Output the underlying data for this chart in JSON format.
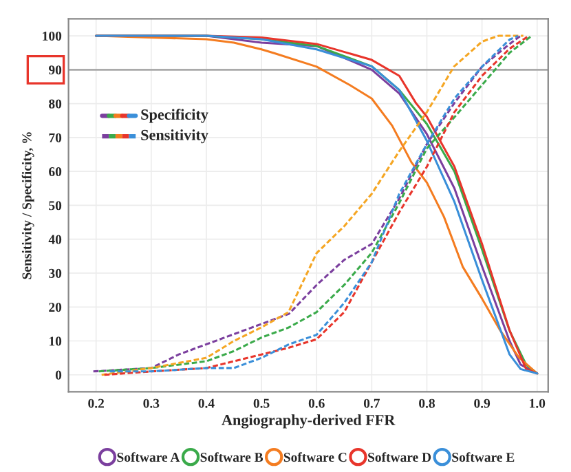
{
  "chart_data": {
    "type": "line",
    "xlabel": "Angiography-derived FFR",
    "ylabel": "Sensitivity / Specificity, %",
    "xlim": [
      0.15,
      1.02
    ],
    "xticks": [
      {
        "value": 0.2,
        "label": "0.2"
      },
      {
        "value": 0.3,
        "label": "0.3"
      },
      {
        "value": 0.4,
        "label": "0.4"
      },
      {
        "value": 0.5,
        "label": "0.5"
      },
      {
        "value": 0.6,
        "label": "0.6"
      },
      {
        "value": 0.7,
        "label": "0.7"
      },
      {
        "value": 0.8,
        "label": "0.8"
      },
      {
        "value": 0.9,
        "label": "0.9"
      },
      {
        "value": 1.0,
        "label": "1.0"
      }
    ],
    "ylim": [
      -5,
      105
    ],
    "yticks": [
      0,
      10,
      20,
      30,
      40,
      50,
      60,
      70,
      80,
      90,
      100
    ],
    "grid": true,
    "legend": "bottom",
    "marker": "none",
    "ref_lines": [
      {
        "axis": "y",
        "value": 90,
        "color": "#aaaaaa"
      }
    ],
    "annotations": [
      "Specificity",
      "Sensitivity"
    ],
    "series": [
      {
        "name": "Software A",
        "color": "#7b3f9e",
        "line_style": "solid",
        "x": [
          0.2,
          0.4,
          0.5,
          0.6,
          0.7,
          0.75,
          0.8,
          0.85,
          0.9,
          0.95,
          0.97,
          1.0
        ],
        "values": [
          100,
          100,
          98,
          97,
          90,
          83,
          71,
          55,
          32,
          10,
          3,
          0.4
        ]
      },
      {
        "name": "Software B",
        "color": "#3aaa4a",
        "line_style": "solid",
        "x": [
          0.2,
          0.4,
          0.5,
          0.6,
          0.7,
          0.75,
          0.8,
          0.85,
          0.9,
          0.95,
          0.98,
          1.0
        ],
        "values": [
          100,
          100,
          99,
          97,
          91,
          84,
          74,
          60,
          37,
          13,
          3,
          0.4
        ]
      },
      {
        "name": "Software C",
        "color": "#f47c20",
        "line_style": "solid",
        "x": [
          0.2,
          0.4,
          0.45,
          0.5,
          0.523,
          0.6,
          0.66,
          0.7,
          0.737,
          0.772,
          0.8,
          0.831,
          0.865,
          0.9,
          0.933,
          0.967,
          1.0
        ],
        "values": [
          100,
          99,
          98,
          96,
          94.9,
          90.9,
          85.5,
          81.5,
          73.5,
          62.7,
          56.7,
          46.6,
          31.9,
          22.5,
          13.1,
          5.1,
          0.4
        ]
      },
      {
        "name": "Software D",
        "color": "#e8352b",
        "line_style": "solid",
        "x": [
          0.2,
          0.4,
          0.5,
          0.6,
          0.7,
          0.75,
          0.78,
          0.8,
          0.85,
          0.9,
          0.95,
          0.98,
          1.0
        ],
        "values": [
          100,
          100,
          99.5,
          97.6,
          92.9,
          88.2,
          80.2,
          76.1,
          61.4,
          38.6,
          13.1,
          1.7,
          0.4
        ]
      },
      {
        "name": "Software E",
        "color": "#3a8fd9",
        "line_style": "solid",
        "x": [
          0.2,
          0.4,
          0.5,
          0.6,
          0.7,
          0.75,
          0.8,
          0.85,
          0.9,
          0.95,
          0.97,
          1.0
        ],
        "values": [
          100,
          100,
          99,
          96,
          91,
          84,
          69,
          51,
          28,
          6,
          1.7,
          0.4
        ]
      },
      {
        "color": "#7b3f9e",
        "line_style": "dashed",
        "x": [
          0.195,
          0.3,
          0.35,
          0.4,
          0.45,
          0.5,
          0.55,
          0.6,
          0.65,
          0.7,
          0.75,
          0.8,
          0.85,
          0.9,
          0.95,
          0.97
        ],
        "values": [
          1,
          2,
          6,
          9,
          12,
          15,
          18,
          26.5,
          33.9,
          38.6,
          52,
          68.1,
          80.2,
          90.9,
          97.6,
          100
        ]
      },
      {
        "color": "#3aaa4a",
        "line_style": "dashed",
        "x": [
          0.205,
          0.3,
          0.4,
          0.45,
          0.5,
          0.55,
          0.6,
          0.65,
          0.7,
          0.75,
          0.8,
          0.85,
          0.9,
          0.95,
          0.99
        ],
        "values": [
          1,
          2,
          4,
          7,
          11,
          14,
          18.5,
          26.5,
          36,
          50.7,
          66.8,
          76,
          85.5,
          95,
          100
        ]
      },
      {
        "color": "#f5a623",
        "line_style": "dashed",
        "x": [
          0.21,
          0.3,
          0.4,
          0.45,
          0.5,
          0.549,
          0.6,
          0.651,
          0.7,
          0.75,
          0.8,
          0.849,
          0.9,
          0.93,
          0.975
        ],
        "values": [
          0,
          2,
          5,
          10,
          14,
          18.5,
          35.9,
          44,
          53.4,
          66,
          77.5,
          90.9,
          98.3,
          100,
          100
        ]
      },
      {
        "color": "#e8352b",
        "line_style": "dashed",
        "x": [
          0.215,
          0.3,
          0.4,
          0.45,
          0.5,
          0.55,
          0.6,
          0.65,
          0.7,
          0.75,
          0.8,
          0.85,
          0.9,
          0.95,
          0.985
        ],
        "values": [
          0,
          1,
          2,
          4,
          6,
          8,
          10.5,
          18.5,
          33.2,
          48,
          61.4,
          77.5,
          88.2,
          96.2,
          100
        ]
      },
      {
        "color": "#3a8fd9",
        "line_style": "dashed",
        "x": [
          0.225,
          0.3,
          0.4,
          0.45,
          0.5,
          0.55,
          0.6,
          0.65,
          0.7,
          0.75,
          0.8,
          0.85,
          0.9,
          0.95,
          0.965
        ],
        "values": [
          1,
          1,
          2,
          2,
          5,
          9,
          11.8,
          21.2,
          33.2,
          53.4,
          68.1,
          81.5,
          90.9,
          98.9,
          100
        ]
      }
    ]
  }
}
